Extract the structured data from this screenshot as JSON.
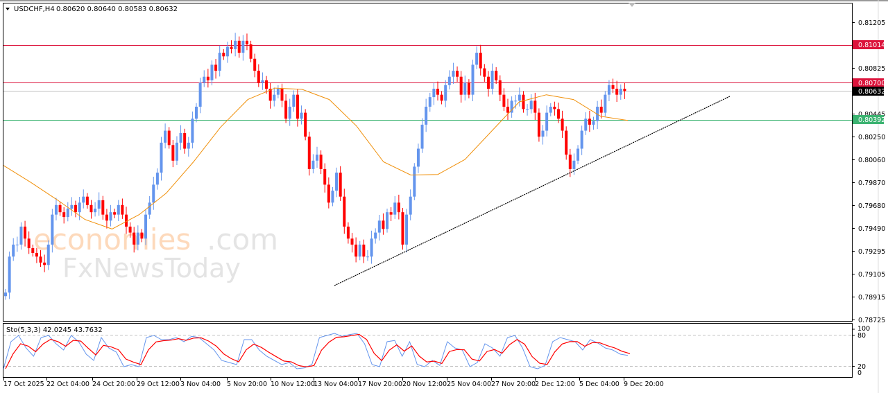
{
  "header": {
    "symbol": "USDCHF,H4",
    "ohlc": "0.80620 0.80640 0.80583 0.80632"
  },
  "indicator": {
    "label": "Sto(5,3,3) 42.0245 43.7632",
    "levels": [
      "100",
      "80",
      "20",
      "0"
    ]
  },
  "watermark": {
    "line1_orange": "economies",
    "line1_grey": ".com",
    "line2": "FxNewsToday"
  },
  "colors": {
    "bull": "#6495ED",
    "bear": "#FF0000",
    "ma": "#F0900A",
    "resistance": "#DC143C",
    "support": "#3CB371",
    "current": "#C0C0C0",
    "trendline": "#000000",
    "sto_main": "#6495ED",
    "sto_signal": "#FF0000"
  },
  "chart_data": {
    "type": "candlestick",
    "title": "USDCHF,H4",
    "ylim": [
      0.78725,
      0.81205
    ],
    "y_ticks": [
      "0.81205",
      "0.80825",
      "0.80445",
      "0.80250",
      "0.80060",
      "0.79870",
      "0.79680",
      "0.79490",
      "0.79295",
      "0.79105",
      "0.78915",
      "0.78725"
    ],
    "x_ticks": [
      "17 Oct 2025",
      "22 Oct 04:00",
      "24 Oct 20:00",
      "29 Oct 12:00",
      "3 Nov 04:00",
      "5 Nov 20:00",
      "10 Nov 12:00",
      "13 Nov 04:00",
      "17 Nov 20:00",
      "20 Nov 12:00",
      "25 Nov 04:00",
      "27 Nov 20:00",
      "2 Dec 12:00",
      "5 Dec 04:00",
      "9 Dec 20:00"
    ],
    "horizontal_lines": [
      {
        "name": "resistance-1",
        "price": "0.81014",
        "color": "#DC143C"
      },
      {
        "name": "resistance-2",
        "price": "0.80700",
        "color": "#DC143C"
      },
      {
        "name": "current-price",
        "price": "0.80632",
        "color": "#000000"
      },
      {
        "name": "support",
        "price": "0.80392",
        "color": "#3CB371"
      }
    ],
    "trendline": {
      "from": [
        "13 Nov 04:00",
        0.79035
      ],
      "to": [
        "after 9 Dec 20:00",
        0.8058
      ]
    },
    "moving_average_samples": [
      0.8001,
      0.7987,
      0.7972,
      0.7956,
      0.7948,
      0.796,
      0.7978,
      0.8004,
      0.8033,
      0.8056,
      0.80655,
      0.80645,
      0.8056,
      0.8034,
      0.8004,
      0.7993,
      0.79935,
      0.8006,
      0.803,
      0.8054,
      0.806,
      0.8056,
      0.8042,
      0.80385
    ],
    "candles_close_approx": [
      0.7895,
      0.7925,
      0.7935,
      0.7935,
      0.795,
      0.794,
      0.7932,
      0.7928,
      0.7925,
      0.792,
      0.7918,
      0.7935,
      0.796,
      0.7968,
      0.7962,
      0.7958,
      0.7965,
      0.7968,
      0.7962,
      0.797,
      0.7975,
      0.7968,
      0.7962,
      0.7965,
      0.7972,
      0.796,
      0.7955,
      0.7962,
      0.796,
      0.7968,
      0.796,
      0.795,
      0.7945,
      0.7935,
      0.7945,
      0.794,
      0.796,
      0.797,
      0.7985,
      0.7995,
      0.802,
      0.803,
      0.8018,
      0.8005,
      0.802,
      0.8028,
      0.8015,
      0.802,
      0.804,
      0.805,
      0.807,
      0.8075,
      0.8072,
      0.8085,
      0.808,
      0.8095,
      0.8092,
      0.81,
      0.8098,
      0.8105,
      0.8095,
      0.8105,
      0.8102,
      0.809,
      0.808,
      0.807,
      0.8072,
      0.8065,
      0.8055,
      0.806,
      0.8065,
      0.8055,
      0.804,
      0.805,
      0.806,
      0.804,
      0.8045,
      0.8025,
      0.7998,
      0.8005,
      0.801,
      0.7998,
      0.7985,
      0.797,
      0.798,
      0.7995,
      0.7975,
      0.795,
      0.794,
      0.7935,
      0.7925,
      0.7935,
      0.7925,
      0.7925,
      0.794,
      0.7945,
      0.7955,
      0.7948,
      0.7962,
      0.796,
      0.797,
      0.7962,
      0.7935,
      0.796,
      0.7975,
      0.8,
      0.8015,
      0.8035,
      0.805,
      0.8058,
      0.8065,
      0.806,
      0.8055,
      0.8068,
      0.8075,
      0.808,
      0.8075,
      0.806,
      0.807,
      0.806,
      0.8085,
      0.8095,
      0.8082,
      0.8075,
      0.8065,
      0.808,
      0.8072,
      0.806,
      0.805,
      0.8045,
      0.8055,
      0.8055,
      0.806,
      0.8048,
      0.8048,
      0.8055,
      0.8045,
      0.8025,
      0.803,
      0.8045,
      0.805,
      0.8048,
      0.804,
      0.803,
      0.801,
      0.7998,
      0.8005,
      0.8015,
      0.803,
      0.804,
      0.8035,
      0.8038,
      0.805,
      0.8045,
      0.806,
      0.8068,
      0.8065,
      0.806,
      0.8065,
      0.8063
    ]
  }
}
